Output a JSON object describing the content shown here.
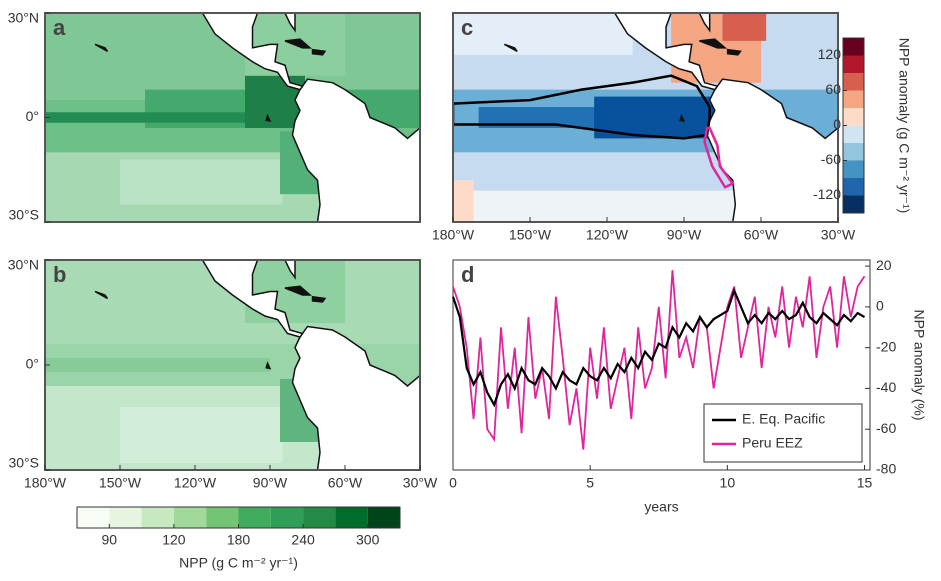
{
  "chart_data": [
    {
      "type": "map",
      "panel": "a",
      "xlim": [
        -180,
        -30
      ],
      "ylim": [
        -30,
        30
      ],
      "yticks": [
        {
          "value": 30,
          "label": "30°N"
        },
        {
          "value": 0,
          "label": "0°"
        },
        {
          "value": -30,
          "label": "30°S"
        }
      ]
    },
    {
      "type": "map",
      "panel": "b",
      "xlim": [
        -180,
        -30
      ],
      "ylim": [
        -30,
        30
      ],
      "yticks": [
        {
          "value": 30,
          "label": "30°N"
        },
        {
          "value": 0,
          "label": "0°"
        },
        {
          "value": -30,
          "label": "30°S"
        }
      ],
      "xticks": [
        {
          "value": -180,
          "label": "180°W"
        },
        {
          "value": -150,
          "label": "150°W"
        },
        {
          "value": -120,
          "label": "120°W"
        },
        {
          "value": -90,
          "label": "90°W"
        },
        {
          "value": -60,
          "label": "60°W"
        },
        {
          "value": -30,
          "label": "30°W"
        }
      ],
      "colorbar": {
        "label": "NPP (g C m⁻² yr⁻¹)",
        "levels": [
          60,
          90,
          105,
          120,
          150,
          180,
          210,
          240,
          270,
          300,
          330
        ],
        "ticks": [
          90,
          120,
          180,
          240,
          300
        ],
        "colors": [
          "#f7fcf5",
          "#e5f5e0",
          "#c7e9c0",
          "#a1d99b",
          "#74c476",
          "#41ab5d",
          "#2f9e57",
          "#238b45",
          "#006d2c",
          "#00441b"
        ]
      }
    },
    {
      "type": "map",
      "panel": "c",
      "xlim": [
        -180,
        -30
      ],
      "ylim": [
        -30,
        30
      ],
      "xticks": [
        {
          "value": -180,
          "label": "180°W"
        },
        {
          "value": -150,
          "label": "150°W"
        },
        {
          "value": -120,
          "label": "120°W"
        },
        {
          "value": -90,
          "label": "90°W"
        },
        {
          "value": -60,
          "label": "60°W"
        },
        {
          "value": -30,
          "label": "30°W"
        }
      ],
      "colorbar": {
        "label": "NPP anomaly (g C m⁻² yr⁻¹)",
        "lim": [
          -150,
          150
        ],
        "ticks": [
          120,
          60,
          0,
          -60,
          -120
        ],
        "colors": [
          "#053061",
          "#2166ac",
          "#4393c3",
          "#92c5de",
          "#d1e5f0",
          "#fddbc7",
          "#f4a582",
          "#d6604d",
          "#b2182b",
          "#67001f"
        ]
      }
    },
    {
      "type": "line",
      "panel": "d",
      "xlabel": "years",
      "ylabel": "NPP anomaly (%)",
      "legend": "lower right",
      "xlim": [
        0,
        15.2
      ],
      "ylim": [
        -80,
        23
      ],
      "xticks": [
        0,
        5,
        10,
        15
      ],
      "yticks": [
        20,
        0,
        -20,
        -40,
        -60,
        -80
      ],
      "x": [
        0,
        0.25,
        0.5,
        0.75,
        1,
        1.25,
        1.5,
        1.75,
        2,
        2.25,
        2.5,
        2.75,
        3,
        3.25,
        3.5,
        3.75,
        4,
        4.25,
        4.5,
        4.75,
        5,
        5.25,
        5.5,
        5.75,
        6,
        6.25,
        6.5,
        6.75,
        7,
        7.25,
        7.5,
        7.75,
        8,
        8.25,
        8.5,
        8.75,
        9,
        9.25,
        9.5,
        9.75,
        10,
        10.25,
        10.5,
        10.75,
        11,
        11.25,
        11.5,
        11.75,
        12,
        12.25,
        12.5,
        12.75,
        13,
        13.25,
        13.5,
        13.75,
        14,
        14.25,
        14.5,
        14.75,
        15
      ],
      "series": [
        {
          "name": "E. Eq. Pacific",
          "color": "#000000",
          "values": [
            5,
            -5,
            -30,
            -38,
            -32,
            -42,
            -48,
            -38,
            -33,
            -40,
            -30,
            -36,
            -38,
            -30,
            -34,
            -40,
            -32,
            -36,
            -38,
            -30,
            -34,
            -36,
            -30,
            -35,
            -28,
            -32,
            -25,
            -30,
            -22,
            -26,
            -18,
            -20,
            -10,
            -15,
            -8,
            -12,
            -5,
            -10,
            -6,
            -4,
            -2,
            8,
            0,
            -8,
            -4,
            -8,
            -3,
            -6,
            -2,
            -6,
            -4,
            2,
            -5,
            -8,
            -3,
            -6,
            -9,
            -4,
            -7,
            -3,
            -5
          ]
        },
        {
          "name": "Peru EEZ",
          "color": "#e0259b",
          "values": [
            10,
            0,
            -20,
            -55,
            -15,
            -60,
            -65,
            -10,
            -50,
            -20,
            -62,
            -5,
            -45,
            -30,
            -55,
            5,
            -25,
            -58,
            -40,
            -70,
            -20,
            -45,
            -10,
            -50,
            -35,
            -20,
            -55,
            -10,
            -40,
            -30,
            0,
            -35,
            18,
            -25,
            -15,
            -30,
            -5,
            -10,
            -40,
            -20,
            0,
            10,
            -25,
            -10,
            5,
            -30,
            0,
            -15,
            10,
            -20,
            5,
            -10,
            15,
            -25,
            0,
            10,
            -20,
            15,
            -5,
            10,
            15
          ]
        }
      ]
    }
  ]
}
